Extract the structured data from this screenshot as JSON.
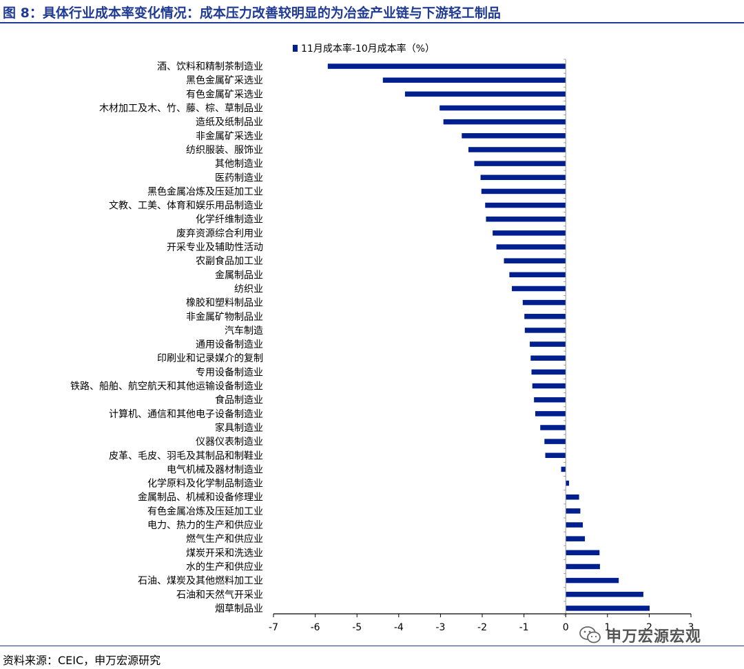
{
  "title": "图 8：具体行业成本率变化情况：成本压力改善较明显的为冶金产业链与下游轻工制品",
  "source": "资料来源：CEIC，申万宏源研究",
  "watermark": "申万宏源宏观",
  "watermark_icon": "wechat-icon",
  "colors": {
    "bar": "#001F8F",
    "title": "#1f3a93",
    "axis": "#000000"
  },
  "chart_data": {
    "type": "bar",
    "orientation": "horizontal",
    "legend": [
      "11月成本率-10月成本率（%）"
    ],
    "legend_placement": "top",
    "xlim": [
      -7,
      3
    ],
    "xticks": [
      -7,
      -6,
      -5,
      -4,
      -3,
      -2,
      -1,
      0,
      1,
      2,
      3
    ],
    "grid": false,
    "categories": [
      "酒、饮料和精制茶制造业",
      "黑色金属矿采选业",
      "有色金属矿采选业",
      "木材加工及木、竹、藤、棕、草制品业",
      "造纸及纸制品业",
      "非金属矿采选业",
      "纺织服装、服饰业",
      "其他制造业",
      "医药制造业",
      "黑色金属冶炼及压延加工业",
      "文教、工美、体育和娱乐用品制造业",
      "化学纤维制造业",
      "废弃资源综合利用业",
      "开采专业及辅助性活动",
      "农副食品加工业",
      "金属制品业",
      "纺织业",
      "橡胶和塑料制品业",
      "非金属矿物制品业",
      "汽车制造",
      "通用设备制造业",
      "印刷业和记录媒介的复制",
      "专用设备制造业",
      "铁路、船舶、航空航天和其他运输设备制造业",
      "食品制造业",
      "计算机、通信和其他电子设备制造业",
      "家具制造业",
      "仪器仪表制造业",
      "皮革、毛皮、羽毛及其制品和制鞋业",
      "电气机械及器材制造业",
      "化学原料及化学制品制造业",
      "金属制品、机械和设备修理业",
      "有色金属冶炼及压延加工业",
      "电力、热力的生产和供应业",
      "燃气生产和供应业",
      "煤炭开采和洗选业",
      "水的生产和供应业",
      "石油、煤炭及其他燃料加工业",
      "石油和天然气开采业",
      "烟草制品业"
    ],
    "values": [
      -5.7,
      -4.38,
      -3.85,
      -3.02,
      -2.93,
      -2.49,
      -2.33,
      -2.19,
      -2.04,
      -2.02,
      -1.93,
      -1.91,
      -1.75,
      -1.66,
      -1.48,
      -1.35,
      -1.29,
      -1.03,
      -0.99,
      -0.98,
      -0.86,
      -0.84,
      -0.82,
      -0.8,
      -0.76,
      -0.73,
      -0.61,
      -0.51,
      -0.49,
      -0.11,
      0.08,
      0.32,
      0.35,
      0.41,
      0.46,
      0.81,
      0.82,
      1.27,
      1.86,
      2.01
    ]
  }
}
